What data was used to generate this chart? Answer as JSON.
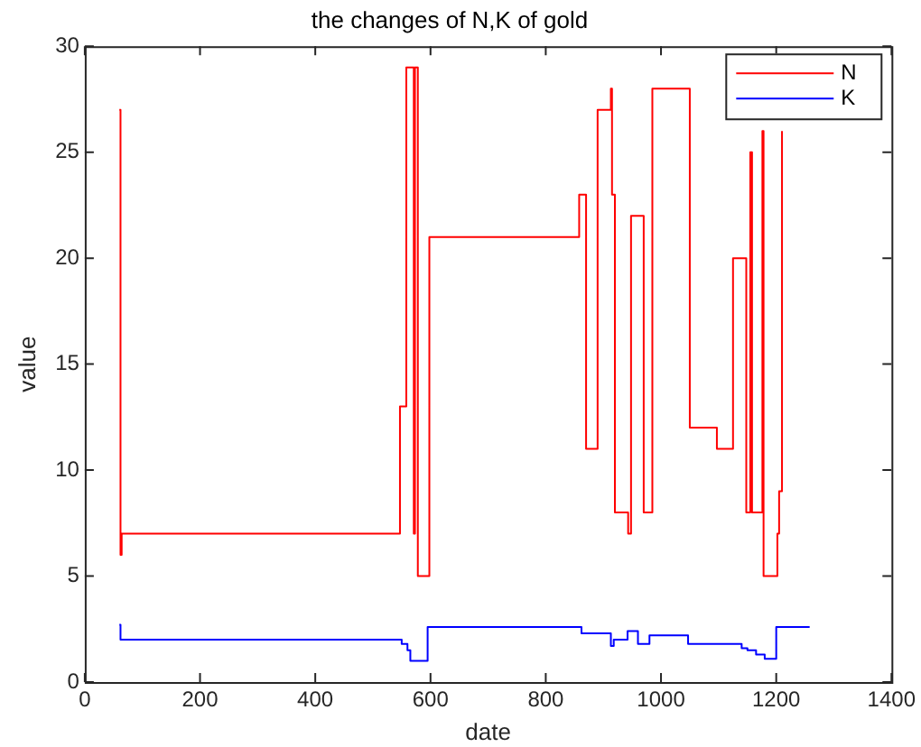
{
  "chart_data": {
    "type": "step",
    "title": "the changes of N,K of gold",
    "xlabel": "date",
    "ylabel": "value",
    "xlim": [
      0,
      1400
    ],
    "xticks": [
      0,
      200,
      400,
      600,
      800,
      1000,
      1200,
      1400
    ],
    "ylim": [
      0,
      30
    ],
    "yticks": [
      0,
      5,
      10,
      15,
      20,
      25,
      30
    ],
    "grid": false,
    "legend": "top right",
    "series": [
      {
        "name": "N",
        "color": "#ff0000",
        "x": [
          60,
          62,
          64,
          547,
          558,
          571,
          573,
          578,
          598,
          858,
          870,
          890,
          913,
          915,
          920,
          943,
          948,
          970,
          985,
          1050,
          1097,
          1125,
          1148,
          1155,
          1158,
          1176,
          1178,
          1191,
          1202,
          1205,
          1210
        ],
        "values": [
          27,
          6,
          7,
          13,
          29,
          7,
          29,
          5,
          21,
          23,
          11,
          27,
          28,
          23,
          8,
          7,
          22,
          8,
          28,
          12,
          11,
          20,
          8,
          25,
          8,
          26,
          5,
          5,
          7,
          9,
          26
        ]
      },
      {
        "name": "K",
        "color": "#0000ff",
        "x": [
          60,
          62,
          550,
          560,
          565,
          595,
          862,
          913,
          918,
          942,
          960,
          980,
          1047,
          1140,
          1150,
          1165,
          1180,
          1200,
          1258
        ],
        "values": [
          2.7,
          2.0,
          1.8,
          1.5,
          1.0,
          2.6,
          2.3,
          1.7,
          2.0,
          2.4,
          1.8,
          2.2,
          1.8,
          1.6,
          1.5,
          1.3,
          1.1,
          2.6,
          2.6
        ]
      }
    ]
  }
}
